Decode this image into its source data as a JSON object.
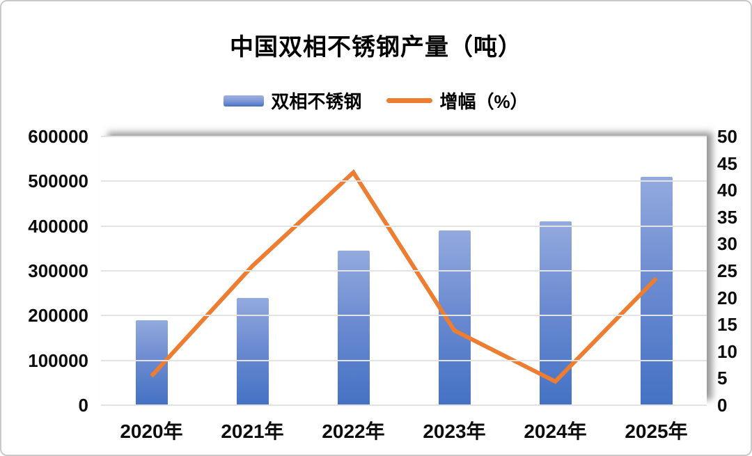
{
  "page": {
    "title": "中国双相不锈钢产量（吨）"
  },
  "chart_data": {
    "type": "combo-bar-line",
    "title": "中国双相不锈钢产量（吨）",
    "categories": [
      "2020年",
      "2021年",
      "2022年",
      "2023年",
      "2024年",
      "2025年"
    ],
    "series": [
      {
        "name": "双相不锈钢",
        "chart_type": "bar",
        "axis": "left",
        "values": [
          190000,
          240000,
          345000,
          390000,
          410000,
          510000
        ],
        "color_top": "#93aade",
        "color_bottom": "#4472c4"
      },
      {
        "name": "增幅（%）",
        "chart_type": "line",
        "axis": "right",
        "values": [
          5.4,
          25.9,
          43.3,
          13.9,
          4.4,
          23.6
        ],
        "color": "#ed7d31"
      }
    ],
    "left_axis": {
      "min": 0,
      "max": 600000,
      "step": 100000,
      "tick_labels": [
        "600000",
        "500000",
        "400000",
        "300000",
        "200000",
        "100000",
        "0"
      ]
    },
    "right_axis": {
      "min": 0,
      "max": 50,
      "step": 5,
      "tick_labels": [
        "50",
        "45",
        "40",
        "35",
        "30",
        "25",
        "20",
        "15",
        "10",
        "5",
        "0"
      ]
    },
    "grid": true,
    "legend_position": "top",
    "plot_shadow": true
  }
}
